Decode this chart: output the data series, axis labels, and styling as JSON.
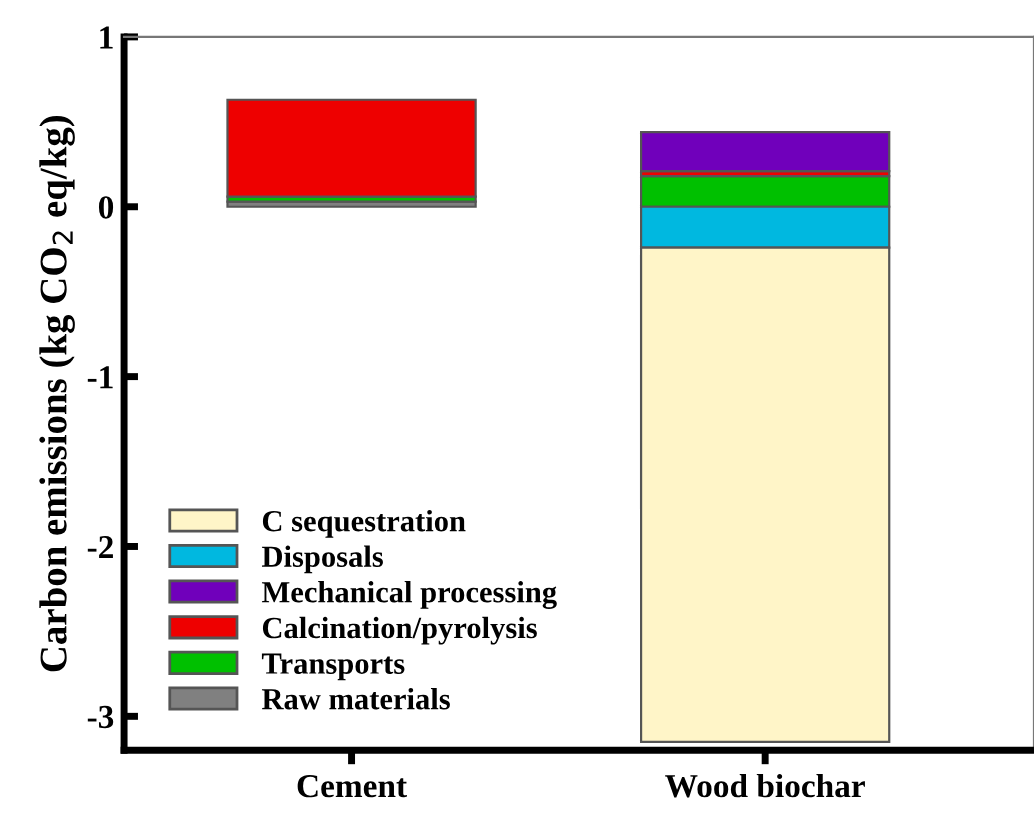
{
  "chart_data": {
    "type": "bar",
    "stacked": true,
    "ylabel": "Carbon emissions (kg CO$_{2}$ eq/kg)",
    "categories": [
      "Cement",
      "Wood biochar"
    ],
    "series": [
      {
        "name": "Raw materials",
        "color": "#808080",
        "values": [
          0.03,
          null
        ]
      },
      {
        "name": "Transports",
        "color": "#00c000",
        "values": [
          0.03,
          0.18
        ]
      },
      {
        "name": "Calcination/pyrolysis",
        "color": "#ee0000",
        "values": [
          0.57,
          0.03
        ]
      },
      {
        "name": "Mechanical processing",
        "color": "#7000bb",
        "values": [
          null,
          0.23
        ]
      },
      {
        "name": "Disposals",
        "color": "#00b8e0",
        "values": [
          null,
          -0.24
        ]
      },
      {
        "name": "C sequestration",
        "color": "#fff5c8",
        "values": [
          null,
          -2.91
        ]
      }
    ],
    "ylim": [
      -3.2,
      1
    ],
    "yticks": [
      -3,
      -2,
      -1,
      0,
      1
    ],
    "grid": false,
    "legend": "bottom left"
  }
}
